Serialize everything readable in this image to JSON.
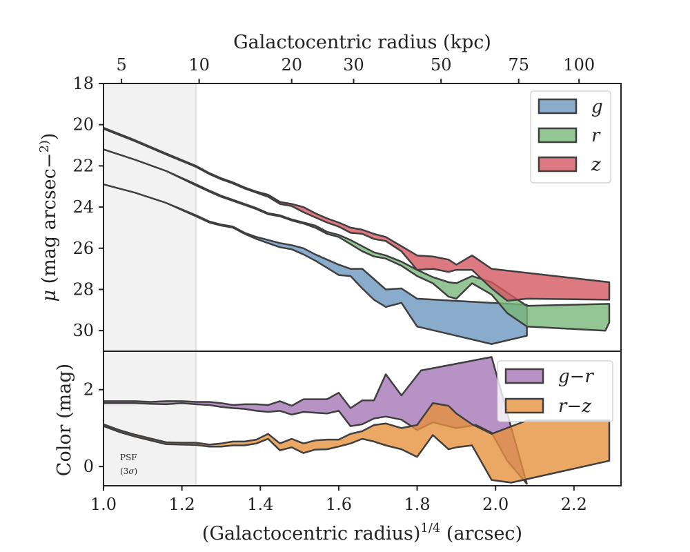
{
  "chart_data": [
    {
      "type": "area",
      "panel": "surface-brightness",
      "xlabel": "(Galactocentric radius)1/4 (arcsec)",
      "top_xlabel": "Galactocentric radius (kpc)",
      "ylabel": "μ (mag arcsec−2)",
      "xlim": [
        1.0,
        2.32
      ],
      "ylim": [
        31.0,
        18.0
      ],
      "y_inverted": true,
      "yticks": [
        18,
        20,
        22,
        24,
        26,
        28,
        30
      ],
      "top_xticks": [
        {
          "label": "5",
          "at_x": 1.046
        },
        {
          "label": "10",
          "at_x": 1.244
        },
        {
          "label": "20",
          "at_x": 1.48
        },
        {
          "label": "30",
          "at_x": 1.638
        },
        {
          "label": "50",
          "at_x": 1.861
        },
        {
          "label": "75",
          "at_x": 2.059
        },
        {
          "label": "100",
          "at_x": 2.213
        }
      ],
      "shaded_region": {
        "x": [
          1.0,
          1.236
        ],
        "label": "PSF",
        "sublabel": "(3σ)"
      },
      "legend": {
        "position": "top-right"
      },
      "series": [
        {
          "name": "g",
          "color": "#6b97c0",
          "upper_x": [
            1.0,
            1.08,
            1.16,
            1.236,
            1.27,
            1.3,
            1.33,
            1.36,
            1.39,
            1.42,
            1.45,
            1.48,
            1.51,
            1.54,
            1.57,
            1.6,
            1.63,
            1.66,
            1.69,
            1.72,
            1.76,
            1.8,
            2.08
          ],
          "upper_y": [
            22.9,
            23.3,
            23.8,
            24.4,
            24.7,
            24.85,
            24.95,
            25.25,
            25.45,
            25.6,
            25.75,
            25.85,
            26.0,
            26.3,
            26.55,
            26.8,
            27.0,
            27.0,
            27.5,
            28.0,
            27.95,
            28.45,
            28.75
          ],
          "lower_x": [
            1.0,
            1.08,
            1.16,
            1.236,
            1.27,
            1.3,
            1.33,
            1.36,
            1.39,
            1.42,
            1.45,
            1.48,
            1.51,
            1.54,
            1.57,
            1.6,
            1.63,
            1.66,
            1.69,
            1.72,
            1.76,
            1.8,
            1.99,
            2.08
          ],
          "lower_y": [
            22.9,
            23.3,
            23.8,
            24.45,
            24.75,
            24.9,
            25.0,
            25.3,
            25.55,
            25.75,
            25.95,
            26.05,
            26.3,
            26.6,
            26.95,
            27.3,
            27.35,
            27.95,
            28.5,
            28.85,
            28.65,
            29.8,
            30.65,
            30.25
          ]
        },
        {
          "name": "r",
          "color": "#79b779",
          "upper_x": [
            1.0,
            1.08,
            1.16,
            1.236,
            1.27,
            1.3,
            1.33,
            1.36,
            1.39,
            1.42,
            1.45,
            1.48,
            1.51,
            1.54,
            1.57,
            1.6,
            1.63,
            1.66,
            1.69,
            1.72,
            1.76,
            1.8,
            1.84,
            1.88,
            1.9,
            1.94,
            1.99,
            2.08,
            2.29
          ],
          "upper_y": [
            21.2,
            21.7,
            22.25,
            22.9,
            23.2,
            23.45,
            23.65,
            23.85,
            24.05,
            24.3,
            24.4,
            24.6,
            24.75,
            24.9,
            25.2,
            25.35,
            25.6,
            25.9,
            26.2,
            26.35,
            26.65,
            27.05,
            27.4,
            27.65,
            27.7,
            27.35,
            27.65,
            28.8,
            28.7
          ],
          "lower_x": [
            1.0,
            1.08,
            1.16,
            1.236,
            1.27,
            1.3,
            1.33,
            1.36,
            1.39,
            1.42,
            1.45,
            1.48,
            1.51,
            1.54,
            1.57,
            1.6,
            1.63,
            1.66,
            1.69,
            1.72,
            1.76,
            1.8,
            1.84,
            1.88,
            1.9,
            1.94,
            1.99,
            2.03,
            2.08,
            2.28,
            2.29
          ],
          "lower_y": [
            21.2,
            21.7,
            22.25,
            22.95,
            23.25,
            23.5,
            23.7,
            23.9,
            24.1,
            24.35,
            24.45,
            24.65,
            24.8,
            25.0,
            25.3,
            25.45,
            25.8,
            26.15,
            26.4,
            26.5,
            26.85,
            27.35,
            27.7,
            28.35,
            28.45,
            27.7,
            28.25,
            29.15,
            29.8,
            30.0,
            29.6
          ]
        },
        {
          "name": "z",
          "color": "#d55760",
          "upper_x": [
            1.0,
            1.08,
            1.16,
            1.236,
            1.27,
            1.3,
            1.33,
            1.36,
            1.39,
            1.42,
            1.45,
            1.48,
            1.51,
            1.54,
            1.57,
            1.6,
            1.63,
            1.66,
            1.69,
            1.72,
            1.76,
            1.8,
            1.84,
            1.88,
            1.9,
            1.94,
            1.99,
            2.29
          ],
          "upper_y": [
            20.15,
            20.75,
            21.4,
            22.0,
            22.35,
            22.6,
            22.8,
            23.05,
            23.25,
            23.4,
            23.75,
            23.85,
            24.0,
            24.3,
            24.55,
            24.75,
            25.0,
            25.1,
            25.3,
            25.45,
            25.9,
            26.35,
            26.4,
            26.55,
            26.8,
            26.35,
            27.0,
            27.65
          ],
          "lower_x": [
            1.0,
            1.08,
            1.16,
            1.236,
            1.27,
            1.3,
            1.33,
            1.36,
            1.39,
            1.42,
            1.45,
            1.48,
            1.51,
            1.54,
            1.57,
            1.6,
            1.63,
            1.66,
            1.69,
            1.72,
            1.76,
            1.8,
            1.84,
            1.88,
            1.9,
            1.94,
            1.99,
            2.03,
            2.08,
            2.29
          ],
          "lower_y": [
            20.2,
            20.8,
            21.45,
            22.05,
            22.4,
            22.65,
            22.85,
            23.1,
            23.3,
            23.5,
            23.85,
            23.95,
            24.25,
            24.5,
            24.75,
            24.95,
            25.25,
            25.3,
            25.55,
            25.65,
            26.15,
            27.05,
            27.0,
            27.15,
            27.05,
            27.05,
            27.95,
            28.55,
            28.45,
            28.5
          ]
        }
      ]
    },
    {
      "type": "area",
      "panel": "color",
      "xlabel": "(Galactocentric radius)1/4 (arcsec)",
      "ylabel": "Color (mag)",
      "xlim": [
        1.0,
        2.32
      ],
      "ylim": [
        -0.5,
        3.0
      ],
      "yticks": [
        0,
        2
      ],
      "xticks": [
        1.0,
        1.2,
        1.4,
        1.6,
        1.8,
        2.0,
        2.2
      ],
      "legend": {
        "position": "top-right"
      },
      "series": [
        {
          "name": "g−r",
          "color": "#a577b5",
          "upper_x": [
            1.0,
            1.04,
            1.08,
            1.12,
            1.16,
            1.2,
            1.236,
            1.27,
            1.3,
            1.33,
            1.36,
            1.39,
            1.42,
            1.45,
            1.48,
            1.51,
            1.54,
            1.57,
            1.6,
            1.63,
            1.66,
            1.69,
            1.72,
            1.76,
            1.81,
            1.99
          ],
          "upper_y": [
            1.7,
            1.7,
            1.7,
            1.68,
            1.7,
            1.7,
            1.68,
            1.68,
            1.65,
            1.6,
            1.62,
            1.62,
            1.6,
            1.7,
            1.58,
            1.75,
            1.75,
            1.75,
            1.92,
            1.52,
            1.72,
            1.72,
            2.4,
            1.85,
            2.5,
            2.85
          ],
          "lower_x": [
            1.0,
            1.04,
            1.08,
            1.12,
            1.16,
            1.2,
            1.236,
            1.27,
            1.3,
            1.33,
            1.36,
            1.39,
            1.42,
            1.45,
            1.48,
            1.51,
            1.54,
            1.57,
            1.6,
            1.63,
            1.66,
            1.69,
            1.72,
            1.76,
            1.8,
            1.84,
            1.9,
            1.95,
            1.99,
            2.03,
            2.08
          ],
          "lower_y": [
            1.65,
            1.65,
            1.65,
            1.63,
            1.62,
            1.65,
            1.62,
            1.6,
            1.55,
            1.52,
            1.5,
            1.45,
            1.42,
            1.45,
            1.35,
            1.42,
            1.4,
            1.38,
            1.45,
            1.05,
            1.1,
            1.25,
            1.3,
            1.22,
            0.95,
            1.15,
            1.0,
            1.08,
            0.88,
            0.15,
            -0.45
          ]
        },
        {
          "name": "r−z",
          "color": "#e6913d",
          "upper_x": [
            1.0,
            1.04,
            1.08,
            1.12,
            1.16,
            1.2,
            1.236,
            1.27,
            1.3,
            1.33,
            1.36,
            1.39,
            1.42,
            1.45,
            1.48,
            1.51,
            1.54,
            1.57,
            1.6,
            1.63,
            1.66,
            1.69,
            1.72,
            1.76,
            1.8,
            1.84,
            1.88,
            1.9,
            1.94,
            1.99,
            2.08,
            2.29
          ],
          "upper_y": [
            1.1,
            0.95,
            0.83,
            0.73,
            0.63,
            0.62,
            0.62,
            0.57,
            0.6,
            0.65,
            0.65,
            0.7,
            0.85,
            0.6,
            0.72,
            0.6,
            0.68,
            0.7,
            0.7,
            0.85,
            0.92,
            1.08,
            1.12,
            1.0,
            1.08,
            1.65,
            1.58,
            1.38,
            1.1,
            0.85,
            1.2,
            1.2
          ],
          "lower_x": [
            1.0,
            1.04,
            1.08,
            1.12,
            1.16,
            1.2,
            1.236,
            1.27,
            1.3,
            1.33,
            1.36,
            1.39,
            1.42,
            1.45,
            1.48,
            1.51,
            1.54,
            1.57,
            1.6,
            1.63,
            1.66,
            1.69,
            1.72,
            1.76,
            1.8,
            1.84,
            1.88,
            1.9,
            1.94,
            1.99,
            2.04,
            2.29
          ],
          "lower_y": [
            1.05,
            0.9,
            0.78,
            0.68,
            0.58,
            0.57,
            0.56,
            0.52,
            0.52,
            0.55,
            0.55,
            0.6,
            0.72,
            0.42,
            0.5,
            0.35,
            0.44,
            0.45,
            0.52,
            0.6,
            0.72,
            0.65,
            0.55,
            0.45,
            0.25,
            0.82,
            0.45,
            0.5,
            0.55,
            -0.35,
            -0.42,
            0.15
          ]
        }
      ]
    }
  ],
  "colors": {
    "edge": "#3f3f3f",
    "psf_shade": "#f2f2f2",
    "frame": "#222222"
  }
}
